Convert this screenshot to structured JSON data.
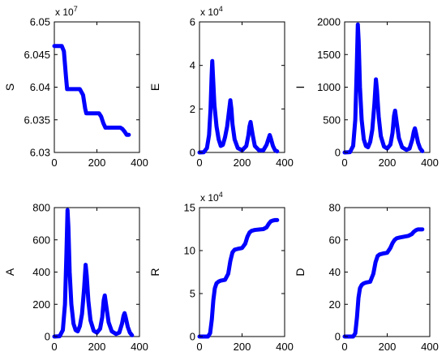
{
  "figure": {
    "background": "#ffffff",
    "line_color": "#0000ff",
    "axes_color": "#000000"
  },
  "chart_data": [
    {
      "type": "line",
      "ylabel": "S",
      "exponent_label": "x 10^7",
      "xlim": [
        0,
        400
      ],
      "ylim": [
        6.03,
        6.05
      ],
      "xticks": [
        0,
        200,
        400
      ],
      "xtick_labels": [
        "0",
        "200",
        "400"
      ],
      "yticks": [
        6.03,
        6.035,
        6.04,
        6.045,
        6.05
      ],
      "ytick_labels": [
        "6.03",
        "6.035",
        "6.04",
        "6.045",
        "6.05"
      ],
      "series": [
        {
          "color": "#0000ff",
          "x": [
            0,
            35,
            45,
            55,
            60,
            70,
            120,
            135,
            145,
            150,
            210,
            220,
            230,
            240,
            310,
            320,
            330,
            340,
            350
          ],
          "y": [
            6.0463,
            6.0463,
            6.0455,
            6.0415,
            6.0397,
            6.0397,
            6.0397,
            6.0388,
            6.0367,
            6.036,
            6.036,
            6.0355,
            6.0345,
            6.0338,
            6.0338,
            6.0336,
            6.0332,
            6.0327,
            6.0327
          ]
        }
      ]
    },
    {
      "type": "line",
      "ylabel": "E",
      "exponent_label": "x 10^4",
      "xlim": [
        0,
        400
      ],
      "ylim": [
        0,
        6
      ],
      "xticks": [
        0,
        200,
        400
      ],
      "xtick_labels": [
        "0",
        "200",
        "400"
      ],
      "yticks": [
        0,
        2,
        4,
        6
      ],
      "ytick_labels": [
        "0",
        "2",
        "4",
        "6"
      ],
      "series": [
        {
          "color": "#0000ff",
          "x": [
            0,
            20,
            35,
            45,
            52,
            57,
            60,
            63,
            70,
            80,
            90,
            100,
            110,
            120,
            130,
            140,
            145,
            150,
            155,
            165,
            180,
            200,
            220,
            230,
            235,
            240,
            250,
            260,
            280,
            300,
            315,
            325,
            330,
            335,
            345,
            355,
            365
          ],
          "y": [
            0,
            0.01,
            0.2,
            0.8,
            2.0,
            3.5,
            4.2,
            3.6,
            2.2,
            1.2,
            0.6,
            0.3,
            0.35,
            0.7,
            1.2,
            2.0,
            2.4,
            2.0,
            1.3,
            0.6,
            0.2,
            0.1,
            0.3,
            0.8,
            1.2,
            1.4,
            0.8,
            0.3,
            0.1,
            0.1,
            0.35,
            0.65,
            0.8,
            0.65,
            0.3,
            0.1,
            0.05
          ]
        }
      ]
    },
    {
      "type": "line",
      "ylabel": "I",
      "exponent_label": "",
      "xlim": [
        0,
        400
      ],
      "ylim": [
        0,
        2000
      ],
      "xticks": [
        0,
        200,
        400
      ],
      "xtick_labels": [
        "0",
        "200",
        "400"
      ],
      "yticks": [
        0,
        500,
        1000,
        1500,
        2000
      ],
      "ytick_labels": [
        "0",
        "500",
        "1000",
        "1500",
        "2000"
      ],
      "series": [
        {
          "color": "#0000ff",
          "x": [
            0,
            25,
            40,
            50,
            57,
            62,
            66,
            72,
            80,
            90,
            100,
            110,
            120,
            130,
            140,
            147,
            152,
            160,
            170,
            185,
            200,
            215,
            225,
            232,
            237,
            245,
            255,
            270,
            290,
            305,
            318,
            325,
            330,
            335,
            345,
            355,
            365
          ],
          "y": [
            0,
            5,
            100,
            500,
            1300,
            1960,
            1700,
            1000,
            500,
            200,
            100,
            80,
            160,
            350,
            750,
            1120,
            950,
            550,
            250,
            90,
            60,
            120,
            300,
            560,
            640,
            450,
            220,
            80,
            40,
            60,
            200,
            320,
            370,
            300,
            150,
            60,
            20
          ]
        }
      ]
    },
    {
      "type": "line",
      "ylabel": "A",
      "exponent_label": "",
      "xlim": [
        0,
        400
      ],
      "ylim": [
        0,
        800
      ],
      "xticks": [
        0,
        200,
        400
      ],
      "xtick_labels": [
        "0",
        "200",
        "400"
      ],
      "yticks": [
        0,
        200,
        400,
        600,
        800
      ],
      "ytick_labels": [
        "0",
        "200",
        "400",
        "600",
        "800"
      ],
      "series": [
        {
          "color": "#0000ff",
          "x": [
            0,
            25,
            40,
            50,
            57,
            62,
            66,
            72,
            80,
            90,
            100,
            110,
            120,
            130,
            140,
            147,
            152,
            160,
            170,
            185,
            200,
            215,
            225,
            232,
            237,
            245,
            255,
            270,
            290,
            305,
            318,
            325,
            330,
            335,
            345,
            355,
            365
          ],
          "y": [
            0,
            2,
            40,
            200,
            520,
            785,
            680,
            400,
            200,
            80,
            40,
            32,
            65,
            140,
            300,
            445,
            380,
            220,
            100,
            36,
            24,
            48,
            120,
            225,
            255,
            180,
            88,
            32,
            16,
            24,
            80,
            128,
            145,
            120,
            60,
            24,
            8
          ]
        }
      ]
    },
    {
      "type": "line",
      "ylabel": "R",
      "exponent_label": "x 10^4",
      "xlim": [
        0,
        400
      ],
      "ylim": [
        0,
        15
      ],
      "xticks": [
        0,
        200,
        400
      ],
      "xtick_labels": [
        "0",
        "200",
        "400"
      ],
      "yticks": [
        0,
        5,
        10,
        15
      ],
      "ytick_labels": [
        "0",
        "5",
        "10",
        "15"
      ],
      "series": [
        {
          "color": "#0000ff",
          "x": [
            0,
            40,
            50,
            58,
            65,
            72,
            80,
            90,
            100,
            120,
            135,
            145,
            155,
            165,
            180,
            200,
            215,
            225,
            235,
            245,
            260,
            280,
            300,
            315,
            325,
            335,
            345,
            355,
            365
          ],
          "y": [
            0,
            0,
            0.4,
            2.0,
            4.2,
            5.6,
            6.2,
            6.4,
            6.5,
            6.6,
            7.3,
            8.8,
            9.8,
            10.1,
            10.2,
            10.3,
            10.8,
            11.6,
            12.1,
            12.3,
            12.4,
            12.45,
            12.5,
            12.7,
            13.1,
            13.4,
            13.5,
            13.55,
            13.55
          ]
        }
      ]
    },
    {
      "type": "line",
      "ylabel": "D",
      "exponent_label": "",
      "xlim": [
        0,
        400
      ],
      "ylim": [
        0,
        80
      ],
      "xticks": [
        0,
        200,
        400
      ],
      "xtick_labels": [
        "0",
        "200",
        "400"
      ],
      "yticks": [
        0,
        20,
        40,
        60,
        80
      ],
      "ytick_labels": [
        "0",
        "20",
        "40",
        "60",
        "80"
      ],
      "series": [
        {
          "color": "#0000ff",
          "x": [
            0,
            40,
            50,
            58,
            65,
            72,
            80,
            90,
            100,
            120,
            135,
            145,
            155,
            165,
            180,
            200,
            215,
            225,
            235,
            245,
            260,
            280,
            300,
            315,
            325,
            335,
            345,
            355,
            365
          ],
          "y": [
            0,
            0,
            2,
            12,
            24,
            30,
            32,
            33,
            33.5,
            34,
            39,
            46,
            50,
            51,
            51.5,
            52,
            55,
            58,
            60,
            61,
            61.5,
            62,
            62.5,
            63.5,
            65,
            66,
            66.5,
            66.5,
            66.5
          ]
        }
      ]
    }
  ]
}
